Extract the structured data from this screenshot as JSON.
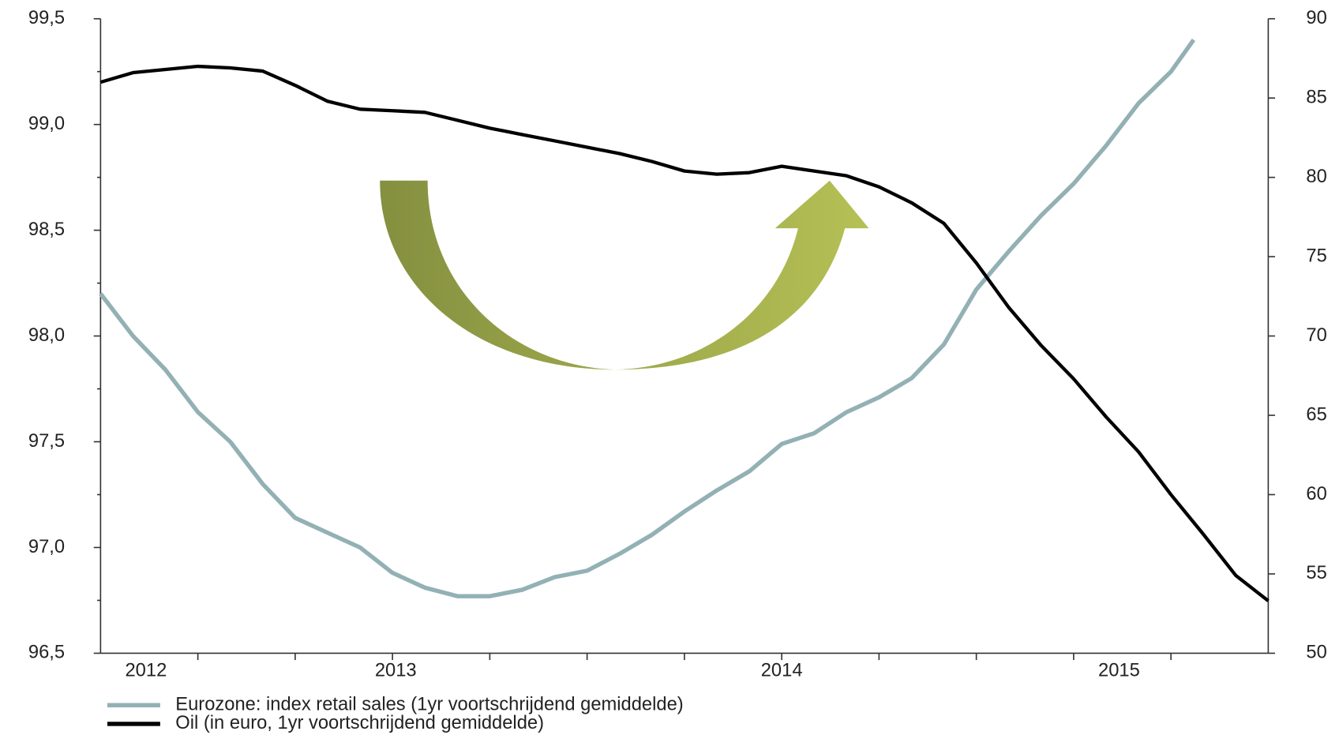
{
  "chart_data": {
    "type": "line",
    "xlim": [
      0,
      36
    ],
    "xticks": [
      {
        "value": 1.4,
        "label": "2012"
      },
      {
        "value": 9.1,
        "label": "2013"
      },
      {
        "value": 21,
        "label": "2014"
      },
      {
        "value": 31.4,
        "label": "2015"
      }
    ],
    "xtick_marks": [
      3,
      6,
      9,
      12,
      15,
      18,
      21,
      24,
      27,
      30,
      33
    ],
    "ylim": [
      96.5,
      99.5
    ],
    "yticks": [
      {
        "value": 96.5,
        "label": "96,5"
      },
      {
        "value": 97,
        "label": "97,0"
      },
      {
        "value": 97.5,
        "label": "97,5"
      },
      {
        "value": 98,
        "label": "98,0"
      },
      {
        "value": 98.5,
        "label": "98,5"
      },
      {
        "value": 99,
        "label": "99,0"
      },
      {
        "value": 99.5,
        "label": "99,5"
      }
    ],
    "y2lim": [
      50,
      90
    ],
    "y2ticks": [
      50,
      55,
      60,
      65,
      70,
      75,
      80,
      85,
      90
    ],
    "series": [
      {
        "name": "Eurozone: index retail sales (1yr voortschrijdend gemiddelde)",
        "color": "#93b1b5",
        "x": [
          0,
          1,
          2,
          3,
          4,
          5,
          6,
          7,
          8,
          9,
          10,
          11,
          12,
          13,
          14,
          15,
          16,
          17,
          18,
          19,
          20,
          21,
          22,
          23,
          24,
          25,
          26,
          27,
          28,
          29,
          30,
          31,
          32,
          33,
          33.7
        ],
        "values": [
          98.2,
          98.0,
          97.84,
          97.64,
          97.5,
          97.3,
          97.14,
          97.07,
          97.0,
          96.88,
          96.81,
          96.77,
          96.77,
          96.8,
          96.86,
          96.89,
          96.97,
          97.06,
          97.17,
          97.27,
          97.36,
          97.49,
          97.54,
          97.64,
          97.71,
          97.8,
          97.96,
          98.22,
          98.4,
          98.57,
          98.72,
          98.9,
          99.1,
          99.25,
          99.4
        ]
      },
      {
        "name": "Oil (in euro, 1yr voortschrijdend gemiddelde)",
        "color": "#000000",
        "axis": "y2",
        "x": [
          0,
          1,
          2,
          3,
          4,
          5,
          6,
          7,
          8,
          9,
          10,
          11,
          12,
          13,
          14,
          15,
          16,
          17,
          18,
          19,
          20,
          21,
          22,
          23,
          24,
          25,
          26,
          27,
          28,
          29,
          30,
          31,
          32,
          33,
          34,
          35,
          36
        ],
        "values": [
          86.0,
          86.6,
          86.8,
          87.0,
          86.9,
          86.7,
          85.8,
          84.8,
          84.3,
          84.2,
          84.1,
          83.6,
          83.1,
          82.7,
          82.3,
          81.9,
          81.5,
          81.0,
          80.4,
          80.2,
          80.3,
          80.7,
          80.4,
          80.1,
          79.4,
          78.4,
          77.1,
          74.6,
          71.8,
          69.4,
          67.3,
          64.9,
          62.7,
          60.0,
          57.5,
          54.9,
          53.3
        ]
      }
    ]
  }
}
